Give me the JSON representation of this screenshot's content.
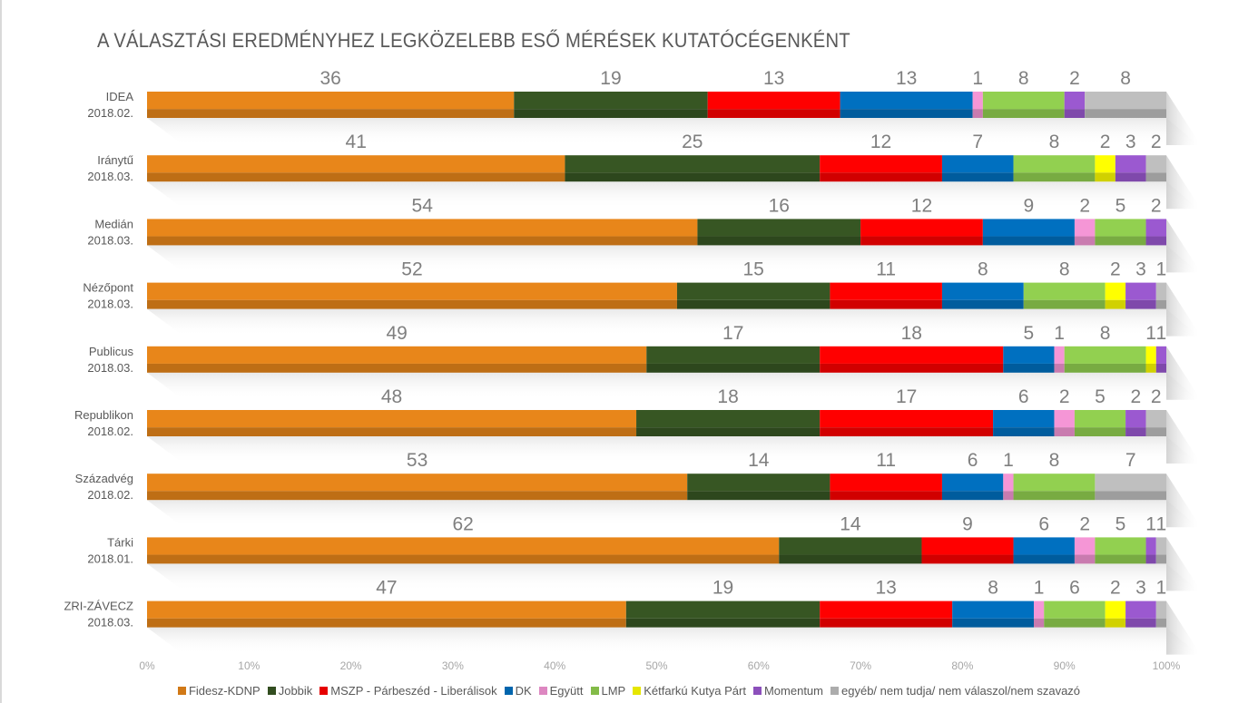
{
  "chart_data": {
    "type": "bar",
    "orientation": "horizontal",
    "stacked": true,
    "title": "A VÁLASZTÁSI EREDMÉNYHEZ LEGKÖZELEBB ESŐ MÉRÉSEK KUTATÓCÉGENKÉNT",
    "xlabel": "",
    "ylabel": "",
    "xlim": [
      0,
      100
    ],
    "x_ticks": [
      "0%",
      "10%",
      "20%",
      "30%",
      "40%",
      "50%",
      "60%",
      "70%",
      "80%",
      "90%",
      "100%"
    ],
    "grid": false,
    "legend_position": "bottom",
    "categories": [
      {
        "name": "IDEA",
        "date": "2018.02."
      },
      {
        "name": "Iránytű",
        "date": "2018.03."
      },
      {
        "name": "Medián",
        "date": "2018.03."
      },
      {
        "name": "Nézőpont",
        "date": "2018.03."
      },
      {
        "name": "Publicus",
        "date": "2018.03."
      },
      {
        "name": "Republikon",
        "date": "2018.02."
      },
      {
        "name": "Századvég",
        "date": "2018.02."
      },
      {
        "name": "Tárki",
        "date": "2018.01."
      },
      {
        "name": "ZRI-ZÁVECZ",
        "date": "2018.03."
      }
    ],
    "series": [
      {
        "name": "Fidesz-KDNP",
        "color": "#e8861a",
        "values": [
          36,
          41,
          54,
          52,
          49,
          48,
          53,
          62,
          47
        ]
      },
      {
        "name": "Jobbik",
        "color": "#375623",
        "values": [
          19,
          25,
          16,
          15,
          17,
          18,
          14,
          14,
          19
        ]
      },
      {
        "name": "MSZP - Párbeszéd - Liberálisok",
        "color": "#ff0000",
        "values": [
          13,
          12,
          12,
          11,
          18,
          17,
          11,
          9,
          13
        ]
      },
      {
        "name": "DK",
        "color": "#0070c0",
        "values": [
          13,
          7,
          9,
          8,
          5,
          6,
          6,
          6,
          8
        ]
      },
      {
        "name": "Együtt",
        "color": "#f596d6",
        "values": [
          1,
          0,
          2,
          0,
          1,
          2,
          1,
          2,
          1
        ]
      },
      {
        "name": "LMP",
        "color": "#92d050",
        "values": [
          8,
          8,
          5,
          8,
          8,
          5,
          8,
          5,
          6
        ]
      },
      {
        "name": "Kétfarkú Kutya Párt",
        "color": "#ffff00",
        "values": [
          0,
          2,
          0,
          2,
          1,
          0,
          0,
          0,
          2
        ]
      },
      {
        "name": "Momentum",
        "color": "#9b59d0",
        "values": [
          2,
          3,
          2,
          3,
          1,
          2,
          0,
          1,
          3
        ]
      },
      {
        "name": "egyéb/ nem tudja/ nem válaszol/nem szavazó",
        "color": "#bfbfbf",
        "values": [
          8,
          2,
          0,
          1,
          0,
          2,
          7,
          1,
          1
        ]
      }
    ]
  }
}
